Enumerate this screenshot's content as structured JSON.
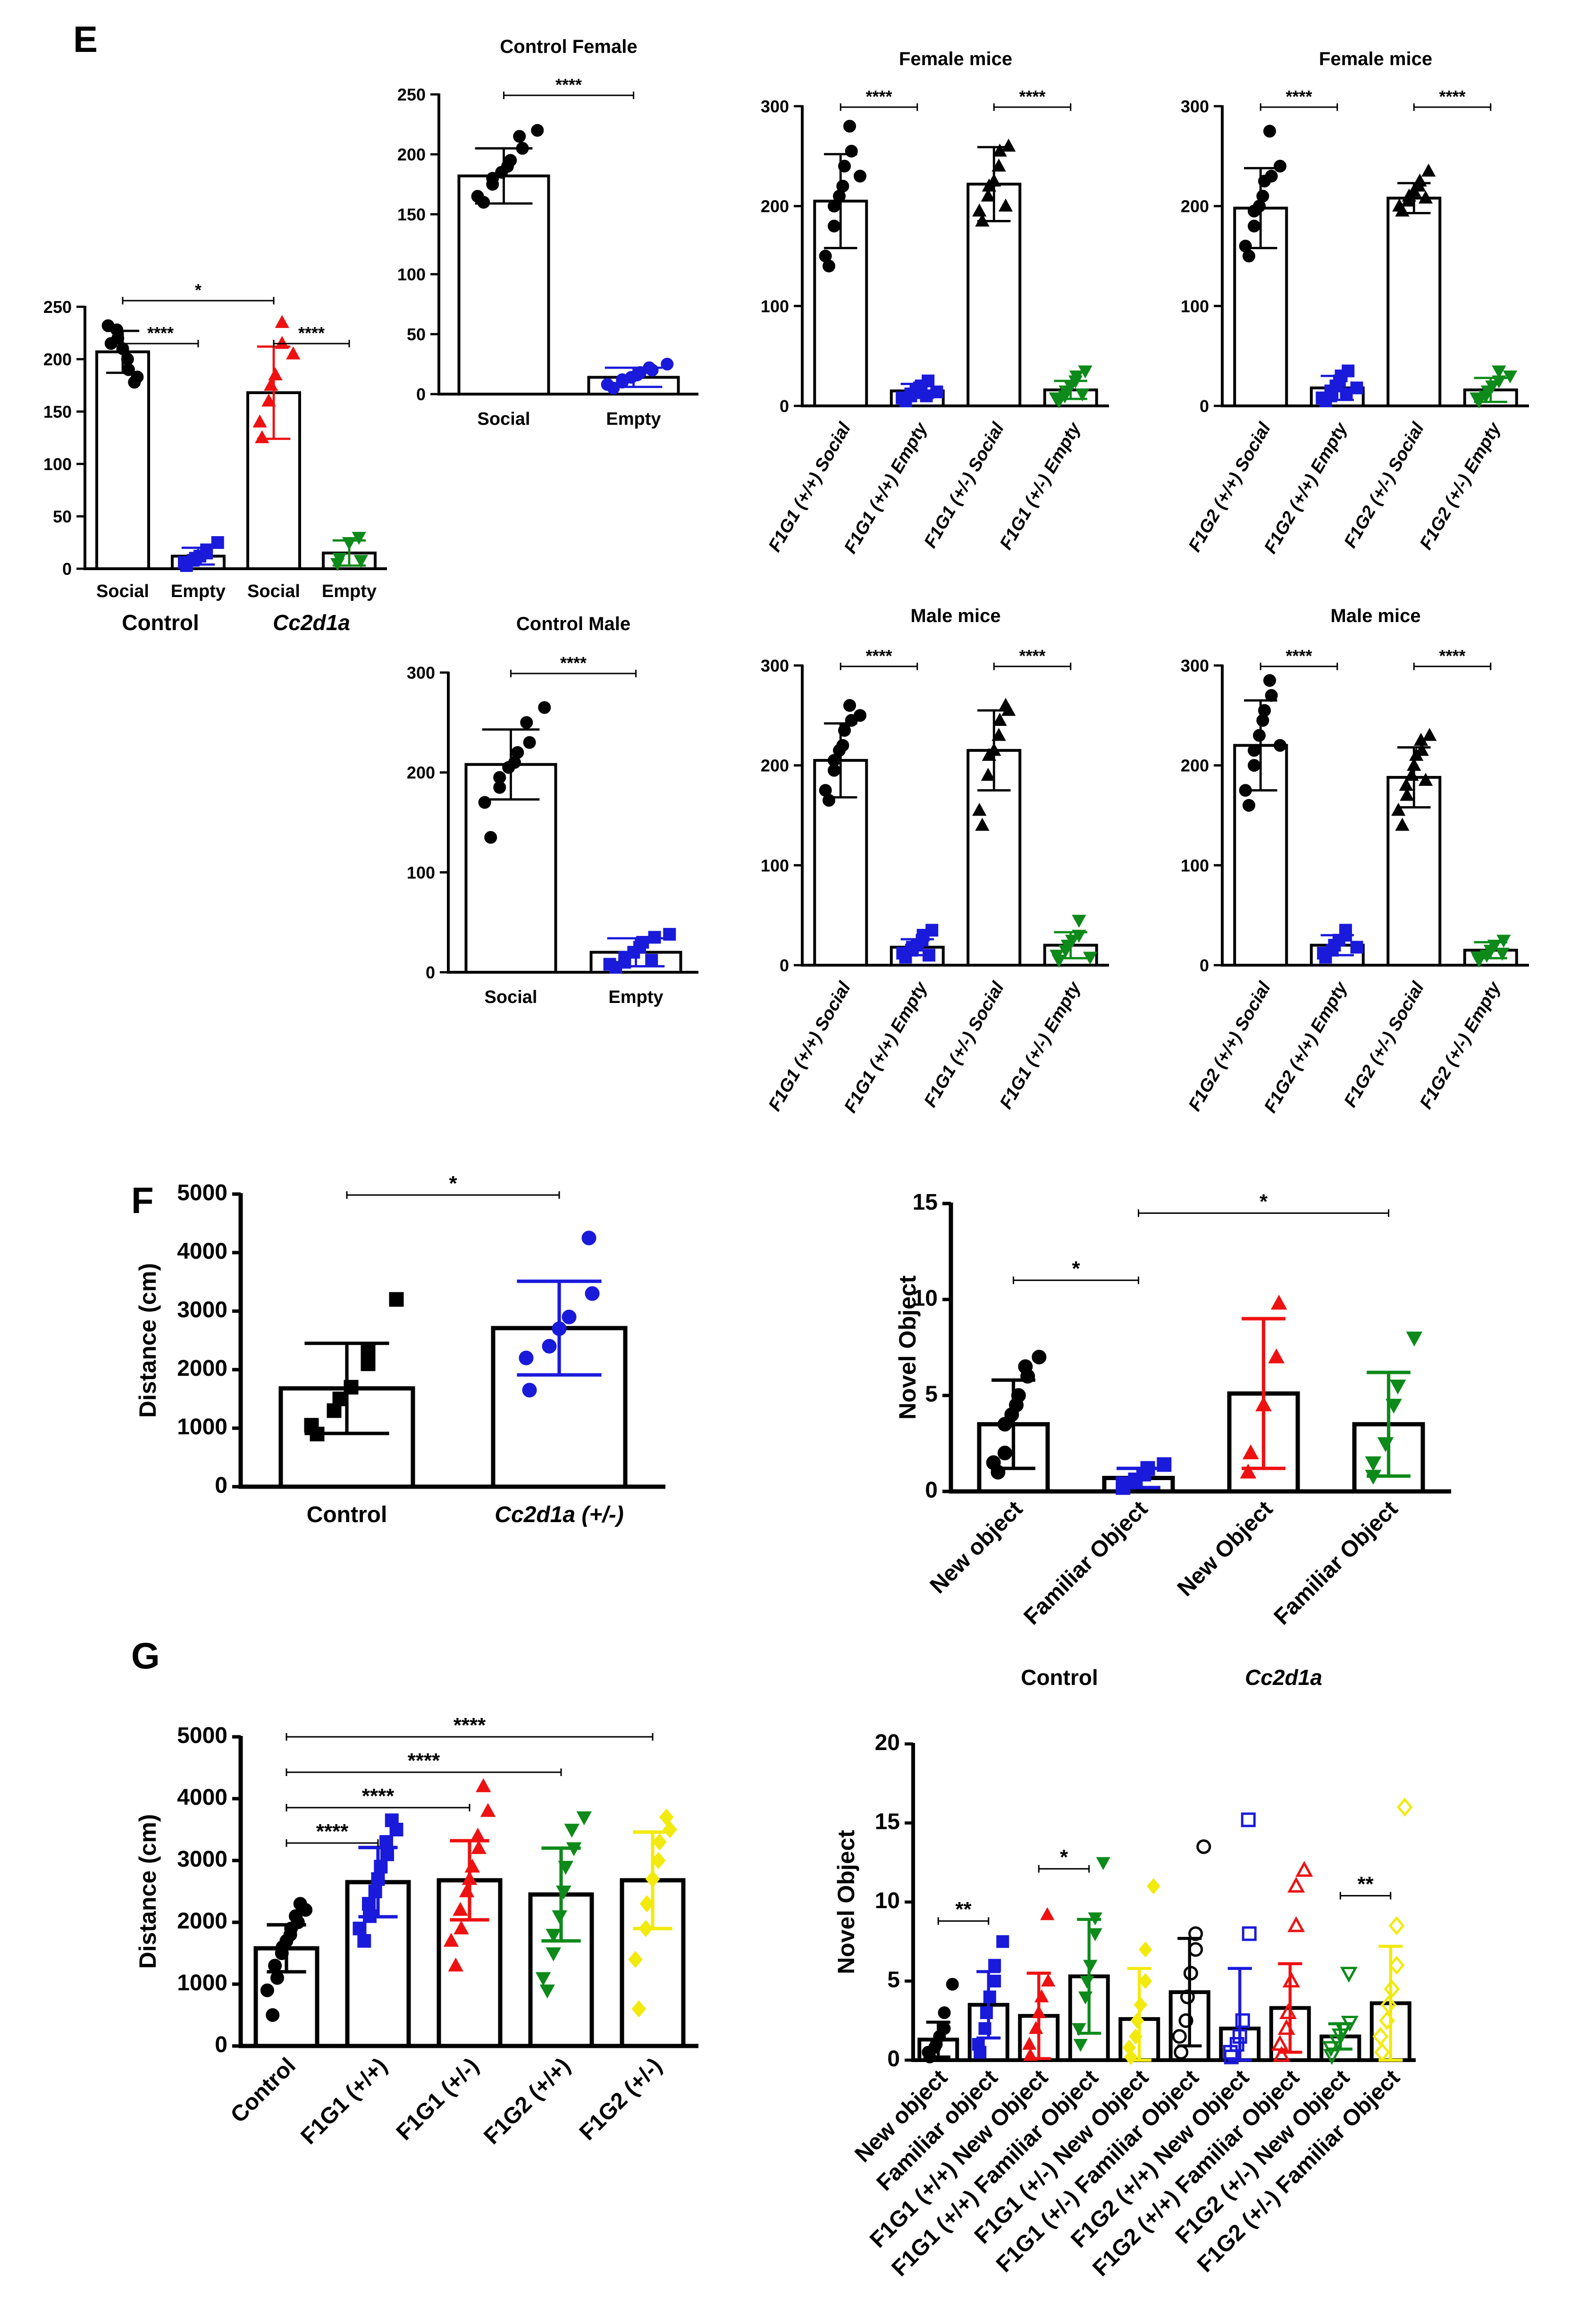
{
  "panel_labels": {
    "E": "E",
    "F": "F",
    "G": "G"
  },
  "colors": {
    "black": "#000000",
    "blue": "#1a1adb",
    "red": "#ee1111",
    "green": "#0d8a1a",
    "yellow": "#f2ea0d"
  },
  "chart_data": [
    {
      "id": "E_overview",
      "type": "bar",
      "title": "",
      "categories": [
        "Social",
        "Empty",
        "Social",
        "Empty"
      ],
      "group_labels": [
        {
          "text": "Control",
          "italic": false
        },
        {
          "text": "Cc2d1a",
          "italic": true
        }
      ],
      "values": [
        207,
        12,
        168,
        15
      ],
      "errors": [
        20,
        8,
        44,
        12
      ],
      "colors": [
        "black",
        "blue",
        "red",
        "green"
      ],
      "markers": [
        "circle",
        "square",
        "triangle",
        "triangle-down"
      ],
      "points": [
        [
          215,
          232,
          228,
          220,
          210,
          200,
          190,
          183,
          178
        ],
        [
          3,
          6,
          8,
          10,
          12,
          15,
          18,
          25
        ],
        [
          125,
          140,
          160,
          175,
          185,
          235,
          215,
          205
        ],
        [
          5,
          10,
          25,
          30,
          8
        ]
      ],
      "ylim": [
        0,
        250
      ],
      "yticks": [
        0,
        50,
        100,
        150,
        200,
        250
      ],
      "significance": [
        {
          "from": 0,
          "to": 2,
          "label": "*",
          "level": 0
        },
        {
          "from": 0,
          "to": 1,
          "label": "****",
          "level": 1
        },
        {
          "from": 2,
          "to": 3,
          "label": "****",
          "level": 1
        }
      ]
    },
    {
      "id": "E_control_female",
      "type": "bar",
      "title": "Control Female",
      "categories": [
        "Social",
        "Empty"
      ],
      "values": [
        182,
        14
      ],
      "errors": [
        23,
        8
      ],
      "colors": [
        "black",
        "blue"
      ],
      "markers": [
        "circle",
        "circle"
      ],
      "points": [
        [
          160,
          165,
          175,
          180,
          185,
          190,
          195,
          205,
          215,
          220
        ],
        [
          5,
          8,
          10,
          12,
          14,
          16,
          18,
          20,
          22,
          25
        ]
      ],
      "ylim": [
        0,
        250
      ],
      "yticks": [
        0,
        50,
        100,
        150,
        200,
        250
      ],
      "significance": [
        {
          "from": 0,
          "to": 1,
          "label": "****",
          "level": 0
        }
      ]
    },
    {
      "id": "E_female_F1G1",
      "type": "bar",
      "title": "Female mice",
      "categories": [
        "F1G1 (+/+) Social",
        "F1G1 (+/+) Empty",
        "F1G1 (+/-) Social",
        "F1G1 (+/-) Empty"
      ],
      "values": [
        205,
        15,
        222,
        16
      ],
      "errors": [
        47,
        7,
        37,
        9
      ],
      "colors": [
        "black",
        "blue",
        "black",
        "green"
      ],
      "markers": [
        "circle",
        "square",
        "triangle",
        "triangle-down"
      ],
      "points": [
        [
          140,
          150,
          180,
          200,
          210,
          220,
          240,
          255,
          280,
          230
        ],
        [
          5,
          8,
          10,
          12,
          15,
          18,
          20,
          25,
          10,
          14
        ],
        [
          185,
          195,
          210,
          220,
          225,
          240,
          255,
          260,
          200
        ],
        [
          5,
          8,
          10,
          15,
          20,
          25,
          30,
          35,
          12
        ]
      ],
      "ylim": [
        0,
        300
      ],
      "yticks": [
        0,
        100,
        200,
        300
      ],
      "significance": [
        {
          "from": 0,
          "to": 1,
          "label": "****",
          "level": 0
        },
        {
          "from": 2,
          "to": 3,
          "label": "****",
          "level": 0
        }
      ]
    },
    {
      "id": "E_female_F1G2",
      "type": "bar",
      "title": "Female mice",
      "categories": [
        "F1G2 (+/+) Social",
        "F1G2 (+/+) Empty",
        "F1G2 (+/-) Social",
        "F1G2 (+/-) Empty"
      ],
      "values": [
        198,
        18,
        208,
        16
      ],
      "errors": [
        40,
        12,
        15,
        12
      ],
      "colors": [
        "black",
        "blue",
        "black",
        "green"
      ],
      "markers": [
        "circle",
        "square",
        "triangle",
        "triangle-down"
      ],
      "points": [
        [
          150,
          160,
          180,
          195,
          200,
          210,
          225,
          230,
          275,
          240
        ],
        [
          5,
          8,
          10,
          15,
          20,
          25,
          30,
          35,
          12,
          18
        ],
        [
          195,
          200,
          205,
          210,
          215,
          220,
          225,
          235,
          208
        ],
        [
          5,
          8,
          10,
          15,
          20,
          25,
          35,
          30
        ]
      ],
      "ylim": [
        0,
        300
      ],
      "yticks": [
        0,
        100,
        200,
        300
      ],
      "significance": [
        {
          "from": 0,
          "to": 1,
          "label": "****",
          "level": 0
        },
        {
          "from": 2,
          "to": 3,
          "label": "****",
          "level": 0
        }
      ]
    },
    {
      "id": "E_control_male",
      "type": "bar",
      "title": "Control Male",
      "categories": [
        "Social",
        "Empty"
      ],
      "values": [
        208,
        20
      ],
      "errors": [
        35,
        14
      ],
      "colors": [
        "black",
        "blue"
      ],
      "markers": [
        "circle",
        "square"
      ],
      "points": [
        [
          135,
          170,
          185,
          195,
          205,
          210,
          220,
          230,
          250,
          265
        ],
        [
          5,
          8,
          10,
          15,
          20,
          25,
          30,
          35,
          12,
          38
        ]
      ],
      "ylim": [
        0,
        300
      ],
      "yticks": [
        0,
        100,
        200,
        300
      ],
      "significance": [
        {
          "from": 0,
          "to": 1,
          "label": "****",
          "level": 0
        }
      ]
    },
    {
      "id": "E_male_F1G1",
      "type": "bar",
      "title": "Male mice",
      "categories": [
        "F1G1 (+/+) Social",
        "F1G1 (+/+) Empty",
        "F1G1 (+/-) Social",
        "F1G1 (+/-) Empty"
      ],
      "values": [
        205,
        18,
        215,
        20
      ],
      "errors": [
        37,
        8,
        40,
        13
      ],
      "colors": [
        "black",
        "blue",
        "black",
        "green"
      ],
      "markers": [
        "circle",
        "square",
        "triangle",
        "triangle-down"
      ],
      "points": [
        [
          165,
          175,
          195,
          205,
          215,
          220,
          235,
          245,
          260,
          250
        ],
        [
          8,
          12,
          15,
          18,
          20,
          25,
          30,
          35,
          10
        ],
        [
          140,
          155,
          190,
          210,
          215,
          230,
          245,
          255,
          260
        ],
        [
          5,
          10,
          15,
          20,
          25,
          30,
          45,
          8
        ]
      ],
      "ylim": [
        0,
        300
      ],
      "yticks": [
        0,
        100,
        200,
        300
      ],
      "significance": [
        {
          "from": 0,
          "to": 1,
          "label": "****",
          "level": 0
        },
        {
          "from": 2,
          "to": 3,
          "label": "****",
          "level": 0
        }
      ]
    },
    {
      "id": "E_male_F1G2",
      "type": "bar",
      "title": "Male mice",
      "categories": [
        "F1G2 (+/+) Social",
        "F1G2 (+/+) Empty",
        "F1G2 (+/-) Social",
        "F1G2 (+/-) Empty"
      ],
      "values": [
        220,
        20,
        188,
        15
      ],
      "errors": [
        45,
        10,
        30,
        8
      ],
      "colors": [
        "black",
        "blue",
        "black",
        "green"
      ],
      "markers": [
        "circle",
        "square",
        "triangle",
        "triangle-down"
      ],
      "points": [
        [
          160,
          175,
          200,
          215,
          230,
          245,
          255,
          270,
          285,
          220
        ],
        [
          8,
          12,
          15,
          20,
          25,
          30,
          35,
          18
        ],
        [
          140,
          155,
          170,
          180,
          190,
          200,
          210,
          215,
          225,
          230,
          185
        ],
        [
          5,
          8,
          10,
          15,
          20,
          25,
          12
        ]
      ],
      "ylim": [
        0,
        300
      ],
      "yticks": [
        0,
        100,
        200,
        300
      ],
      "significance": [
        {
          "from": 0,
          "to": 1,
          "label": "****",
          "level": 0
        },
        {
          "from": 2,
          "to": 3,
          "label": "****",
          "level": 0
        }
      ]
    },
    {
      "id": "F_distance",
      "type": "bar",
      "title": "",
      "ylabel": "Distance (cm)",
      "categories": [
        "Control",
        "Cc2d1a (+/-)"
      ],
      "values": [
        1680,
        2710
      ],
      "errors": [
        770,
        800
      ],
      "colors": [
        "black",
        "blue"
      ],
      "markers": [
        "square",
        "circle"
      ],
      "points": [
        [
          900,
          1050,
          1300,
          1500,
          1700,
          2100,
          2300,
          3200
        ],
        [
          1650,
          2200,
          2400,
          2700,
          2900,
          3300,
          4250
        ]
      ],
      "ylim": [
        0,
        5000
      ],
      "yticks": [
        0,
        1000,
        2000,
        3000,
        4000,
        5000
      ],
      "significance": [
        {
          "from": 0,
          "to": 1,
          "label": "*",
          "level": 0
        }
      ]
    },
    {
      "id": "F_novel",
      "type": "bar",
      "title": "",
      "ylabel": "Novel Object",
      "categories": [
        "New object",
        "Familiar Object",
        "New Object",
        "Familiar Object"
      ],
      "values": [
        3.5,
        0.7,
        5.1,
        3.5
      ],
      "errors": [
        2.3,
        0.5,
        3.9,
        2.7
      ],
      "colors": [
        "black",
        "blue",
        "red",
        "green"
      ],
      "markers": [
        "circle",
        "square",
        "triangle",
        "triangle-down"
      ],
      "points": [
        [
          1.0,
          1.5,
          2.0,
          3.5,
          4.0,
          4.5,
          5.0,
          6.0,
          6.5,
          7.0
        ],
        [
          0.2,
          0.4,
          0.6,
          0.9,
          1.2,
          1.4
        ],
        [
          1.0,
          2.0,
          4.5,
          7.0,
          9.8
        ],
        [
          0.8,
          1.5,
          2.5,
          4.5,
          5.5,
          8.0
        ]
      ],
      "ylim": [
        0,
        15
      ],
      "yticks": [
        0,
        5,
        10,
        15
      ],
      "group_labels_top": [
        {
          "text": "Control",
          "italic": false
        },
        {
          "text": "Cc2d1a",
          "italic": true
        }
      ],
      "significance": [
        {
          "from": 0,
          "to": 1,
          "label": "*",
          "level": 0
        },
        {
          "from": 1,
          "to": 3,
          "label": "*",
          "level": 1
        }
      ]
    },
    {
      "id": "G_distance",
      "type": "bar",
      "title": "",
      "ylabel": "Distance (cm)",
      "categories": [
        "Control",
        "F1G1 (+/+)",
        "F1G1 (+/-)",
        "F1G2 (+/+)",
        "F1G2 (+/-)"
      ],
      "values": [
        1580,
        2650,
        2680,
        2450,
        2680
      ],
      "errors": [
        380,
        560,
        640,
        750,
        780
      ],
      "colors": [
        "black",
        "blue",
        "red",
        "green",
        "yellow"
      ],
      "markers": [
        "circle",
        "square",
        "triangle",
        "triangle-down",
        "diamond"
      ],
      "points": [
        [
          500,
          900,
          1100,
          1300,
          1500,
          1600,
          1700,
          1800,
          1900,
          2000,
          2100,
          2200,
          2300
        ],
        [
          1700,
          1900,
          2100,
          2300,
          2500,
          2700,
          2900,
          3100,
          3300,
          3500,
          3650
        ],
        [
          1300,
          1700,
          1900,
          2200,
          2500,
          2700,
          2900,
          3200,
          3400,
          3800,
          4200
        ],
        [
          900,
          1100,
          1500,
          1800,
          2100,
          2500,
          2900,
          3200,
          3500,
          3700
        ],
        [
          600,
          1400,
          1900,
          2300,
          2700,
          3000,
          3300,
          3500,
          3700
        ]
      ],
      "ylim": [
        0,
        5000
      ],
      "yticks": [
        0,
        1000,
        2000,
        3000,
        4000,
        5000
      ],
      "significance": [
        {
          "from": 0,
          "to": 1,
          "label": "****",
          "level": 0
        },
        {
          "from": 0,
          "to": 2,
          "label": "****",
          "level": 1
        },
        {
          "from": 0,
          "to": 3,
          "label": "****",
          "level": 2
        },
        {
          "from": 0,
          "to": 4,
          "label": "****",
          "level": 3
        }
      ]
    },
    {
      "id": "G_novel",
      "type": "bar",
      "title": "",
      "ylabel": "Novel Object",
      "categories": [
        "New object",
        "Familiar object",
        "F1G1 (+/+) New Object",
        "F1G1 (+/+) Familiar Object",
        "F1G1 (+/-) New Object",
        "F1G1 (+/-) Familiar Object",
        "F1G2 (+/+) New Object",
        "F1G2 (+/+) Familiar Object",
        "F1G2 (+/-) New Object",
        "F1G2 (+/-) Familiar Object"
      ],
      "values": [
        1.3,
        3.5,
        2.8,
        5.3,
        2.6,
        4.3,
        2.0,
        3.3,
        1.5,
        3.6
      ],
      "errors": [
        1.1,
        2.1,
        2.7,
        3.6,
        3.2,
        3.4,
        3.8,
        2.8,
        0.8,
        3.6
      ],
      "colors": [
        "black",
        "blue",
        "red",
        "green",
        "yellow",
        "black",
        "blue",
        "red",
        "green",
        "yellow"
      ],
      "markers": [
        "circle",
        "square",
        "triangle",
        "triangle-down",
        "diamond",
        "circle-open",
        "square-open",
        "triangle-open",
        "triangle-down-open",
        "diamond-open"
      ],
      "points": [
        [
          0.2,
          0.5,
          0.8,
          1.0,
          1.5,
          2.0,
          3.0,
          4.8
        ],
        [
          0.5,
          1.0,
          2.0,
          3.0,
          4.0,
          5.0,
          6.0,
          7.5
        ],
        [
          0.3,
          1.0,
          2.0,
          3.0,
          4.0,
          5.0,
          9.2
        ],
        [
          1.0,
          2.0,
          4.0,
          5.0,
          6.0,
          8.0,
          9.0,
          12.5
        ],
        [
          0.2,
          0.8,
          1.5,
          2.5,
          3.5,
          5.0,
          7.0,
          11.0
        ],
        [
          0.5,
          1.5,
          2.5,
          4.0,
          5.5,
          7.0,
          8.0,
          13.5
        ],
        [
          0.2,
          0.5,
          1.0,
          1.5,
          2.5,
          8.0,
          15.2
        ],
        [
          0.3,
          1.0,
          2.0,
          3.0,
          5.0,
          8.5,
          11.0,
          12.0
        ],
        [
          0.3,
          0.8,
          1.2,
          1.6,
          2.0,
          2.4,
          5.5
        ],
        [
          0.5,
          1.5,
          2.5,
          3.5,
          4.5,
          6.0,
          8.5,
          16.0
        ]
      ],
      "ylim": [
        0,
        20
      ],
      "yticks": [
        0,
        5,
        10,
        15,
        20
      ],
      "significance": [
        {
          "from": 0,
          "to": 1,
          "label": "**",
          "level": 0
        },
        {
          "from": 2,
          "to": 3,
          "label": "*",
          "level": 0
        },
        {
          "from": 8,
          "to": 9,
          "label": "**",
          "level": 0
        }
      ]
    }
  ]
}
